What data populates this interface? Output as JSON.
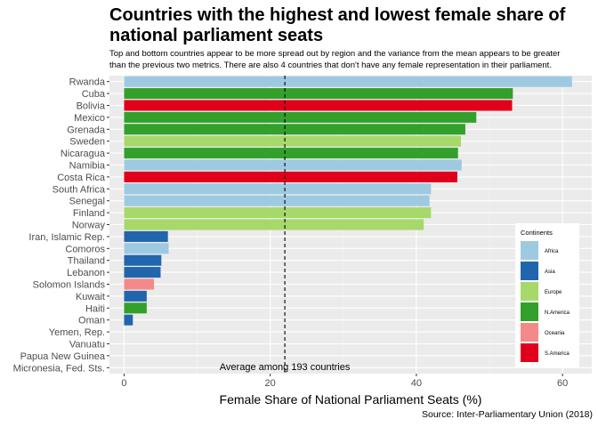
{
  "chart_data": {
    "type": "bar",
    "orientation": "horizontal",
    "title": "Countries with the highest and lowest female share of national parliament seats",
    "subtitle": [
      "Top and bottom countries appear to be more spread out by region and the variance from the mean appears to be greater",
      "than the previous two metrics. There are also 4 countries that don't have any female representation in their parliament."
    ],
    "xlabel": "Female Share of National Parliament Seats (%)",
    "ylabel": "",
    "xlim": [
      -2,
      64
    ],
    "xticks": [
      0,
      20,
      40,
      60
    ],
    "grid": true,
    "source": "Source: Inter-Parliamentary Union (2018)",
    "mean_line": {
      "value": 22,
      "label": "Average among 193 countries"
    },
    "legend": {
      "title": "Continents",
      "placement": "right",
      "entries": [
        {
          "name": "Africa",
          "color": "#9ecae1"
        },
        {
          "name": "Asia",
          "color": "#2166ac"
        },
        {
          "name": "Europe",
          "color": "#a6d96a"
        },
        {
          "name": "N.America",
          "color": "#33a02c"
        },
        {
          "name": "Oceania",
          "color": "#f4898b"
        },
        {
          "name": "S.America",
          "color": "#e0001b"
        }
      ]
    },
    "categories": [
      "Rwanda",
      "Cuba",
      "Bolivia",
      "Mexico",
      "Grenada",
      "Sweden",
      "Nicaragua",
      "Namibia",
      "Costa Rica",
      "South Africa",
      "Senegal",
      "Finland",
      "Norway",
      "Iran, Islamic Rep.",
      "Comoros",
      "Thailand",
      "Lebanon",
      "Solomon Islands",
      "Kuwait",
      "Haiti",
      "Oman",
      "Yemen, Rep.",
      "Vanuatu",
      "Papua New Guinea",
      "Micronesia, Fed. Sts."
    ],
    "values": [
      61.3,
      53.2,
      53.1,
      48.2,
      46.7,
      46.1,
      45.7,
      46.2,
      45.6,
      42.0,
      41.8,
      42.0,
      41.0,
      6.0,
      6.1,
      5.1,
      5.0,
      4.1,
      3.1,
      3.1,
      1.2,
      0,
      0,
      0,
      0
    ],
    "continents": [
      "Africa",
      "N.America",
      "S.America",
      "N.America",
      "N.America",
      "Europe",
      "N.America",
      "Africa",
      "S.America",
      "Africa",
      "Africa",
      "Europe",
      "Europe",
      "Asia",
      "Africa",
      "Asia",
      "Asia",
      "Oceania",
      "Asia",
      "N.America",
      "Asia",
      "Asia",
      "Oceania",
      "Oceania",
      "Oceania"
    ]
  }
}
